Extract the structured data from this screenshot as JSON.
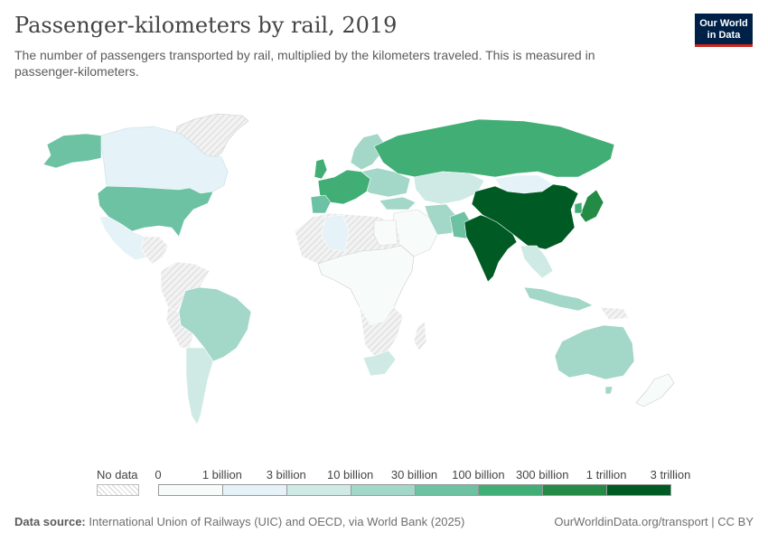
{
  "header": {
    "title": "Passenger-kilometers by rail, 2019",
    "subtitle": "The number of passengers transported by rail, multiplied by the kilometers traveled. This is measured in passenger-kilometers."
  },
  "logo": {
    "line1": "Our World",
    "line2": "in Data"
  },
  "legend": {
    "no_data_label": "No data",
    "ticks": [
      "0",
      "1 billion",
      "3 billion",
      "10 billion",
      "30 billion",
      "100 billion",
      "300 billion",
      "1 trillion",
      "3 trillion"
    ],
    "colors": [
      "#f7fbf9",
      "#e5f2f8",
      "#cfeae4",
      "#a3d7c8",
      "#6cc2a2",
      "#41ae76",
      "#238b45",
      "#005a24"
    ]
  },
  "colors": {
    "no_data": "#e8e8e8",
    "border": "#ffffff",
    "zero": "#f7fbf9"
  },
  "footer": {
    "source_label": "Data source:",
    "source_text": "International Union of Railways (UIC) and OECD, via World Bank (2025)",
    "right_text": "OurWorldinData.org/transport | CC BY"
  }
}
